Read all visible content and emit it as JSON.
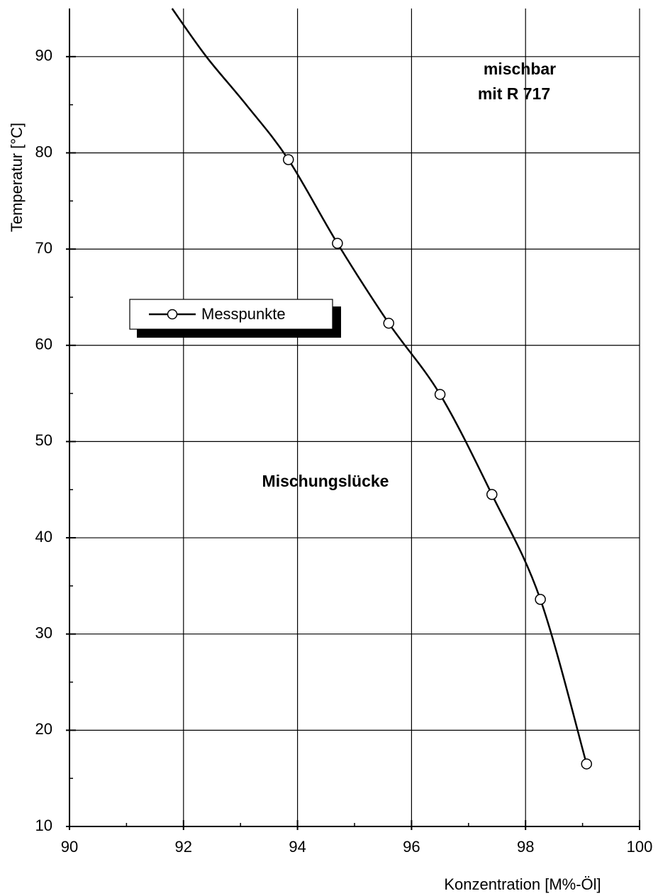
{
  "chart_data": {
    "type": "line",
    "x_label": "Konzentration [M%-Öl]",
    "y_label": "Temperatur [°C]",
    "annotations": [
      "mischbar",
      "mit R 717",
      "Mischungslücke"
    ],
    "xlim": [
      90,
      100
    ],
    "ylim": [
      10,
      95
    ],
    "xticks": [
      90,
      92,
      94,
      96,
      98,
      100
    ],
    "yticks": [
      10,
      20,
      30,
      40,
      50,
      60,
      70,
      80,
      90
    ],
    "xminor_ticks": [
      91,
      93,
      95,
      97,
      99
    ],
    "yminor_ticks": [
      15,
      25,
      35,
      45,
      55,
      65,
      75,
      85
    ],
    "grid": true,
    "series": [
      {
        "name": "Messpunkte",
        "color": "#000000",
        "x": [
          93.84,
          94.7,
          95.6,
          96.5,
          97.41,
          98.26,
          99.07
        ],
        "values": [
          79.3,
          70.6,
          62.3,
          54.9,
          44.5,
          33.6,
          16.5
        ]
      }
    ],
    "curve": {
      "x": [
        91.8,
        92.4,
        93.1,
        93.84,
        94.7,
        95.6,
        96.5,
        97.41,
        98.26,
        99.07
      ],
      "values": [
        95,
        90,
        85,
        79.3,
        70.6,
        62.3,
        54.9,
        44.5,
        33.6,
        16.5
      ]
    }
  }
}
